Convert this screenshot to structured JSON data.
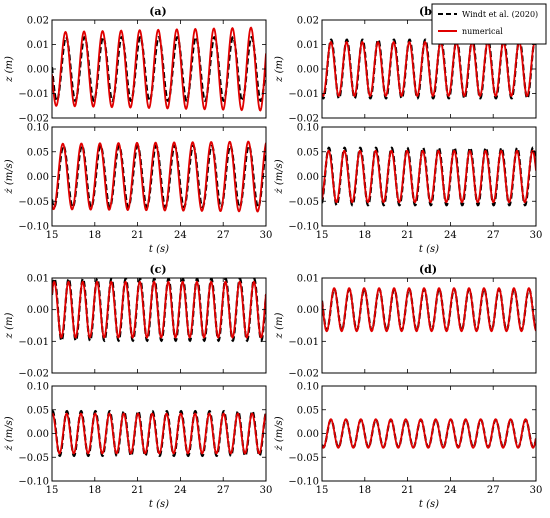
{
  "legend": {
    "ref_label": "Windt et al. (2020)",
    "num_label": "numerical",
    "ref_color": "#000000",
    "num_color": "#e00000"
  },
  "axis_text": {
    "xlabel": "t (s)",
    "ylabel_pos": "z (m)",
    "ylabel_vel": "ż (m/s)"
  },
  "panel_labels": [
    "(a)",
    "(b)",
    "(c)",
    "(d)"
  ],
  "chart_data": [
    {
      "type": "line",
      "panel": "(a)",
      "quantity": "position",
      "xlim": [
        15,
        30
      ],
      "ylim": [
        -0.02,
        0.02
      ],
      "x_ticks": [
        15,
        18,
        21,
        24,
        27,
        30
      ],
      "y_ticks": [
        -0.02,
        -0.01,
        0.0,
        0.01,
        0.02
      ],
      "y_tick_labels": [
        "−0.02",
        "−0.01",
        "0.00",
        "0.01",
        "0.02"
      ],
      "grid": false,
      "series": [
        {
          "name": "Windt et al. (2020)",
          "style": "dashed",
          "period_s": 1.3,
          "amplitude": 0.013,
          "phase": -0.3,
          "amp_drift": 0.0
        },
        {
          "name": "numerical",
          "style": "solid",
          "period_s": 1.3,
          "amplitude": 0.015,
          "phase": -0.1,
          "amp_drift": 0.002
        }
      ]
    },
    {
      "type": "line",
      "panel": "(a)",
      "quantity": "velocity",
      "xlim": [
        15,
        30
      ],
      "ylim": [
        -0.1,
        0.1
      ],
      "x_ticks": [
        15,
        18,
        21,
        24,
        27,
        30
      ],
      "y_ticks": [
        -0.1,
        -0.05,
        0.0,
        0.05,
        0.1
      ],
      "y_tick_labels": [
        "−0.10",
        "−0.05",
        "0.00",
        "0.05",
        "0.10"
      ],
      "grid": false,
      "series": [
        {
          "name": "Windt et al. (2020)",
          "style": "dashed",
          "period_s": 1.3,
          "amplitude": 0.062,
          "phase": 0.6,
          "amp_drift": 0.0
        },
        {
          "name": "numerical",
          "style": "solid",
          "period_s": 1.3,
          "amplitude": 0.066,
          "phase": 0.8,
          "amp_drift": 0.005
        }
      ]
    },
    {
      "type": "line",
      "panel": "(b)",
      "quantity": "position",
      "xlim": [
        15,
        30
      ],
      "ylim": [
        -0.02,
        0.02
      ],
      "x_ticks": [
        15,
        18,
        21,
        24,
        27,
        30
      ],
      "y_ticks": [
        -0.02,
        -0.01,
        0.0,
        0.01,
        0.02
      ],
      "y_tick_labels": [
        "−0.02",
        "−0.01",
        "0.00",
        "0.01",
        "0.02"
      ],
      "grid": false,
      "series": [
        {
          "name": "Windt et al. (2020)",
          "style": "dashed",
          "period_s": 1.1,
          "amplitude": 0.012,
          "phase": 0.2,
          "amp_drift": 0.0
        },
        {
          "name": "numerical",
          "style": "solid",
          "period_s": 1.1,
          "amplitude": 0.011,
          "phase": 0.3,
          "amp_drift": 0.0
        }
      ]
    },
    {
      "type": "line",
      "panel": "(b)",
      "quantity": "velocity",
      "xlim": [
        15,
        30
      ],
      "ylim": [
        -0.1,
        0.1
      ],
      "x_ticks": [
        15,
        18,
        21,
        24,
        27,
        30
      ],
      "y_ticks": [
        -0.1,
        -0.05,
        0.0,
        0.05,
        0.1
      ],
      "y_tick_labels": [
        "−0.10",
        "−0.05",
        "0.00",
        "0.05",
        "0.10"
      ],
      "grid": false,
      "series": [
        {
          "name": "Windt et al. (2020)",
          "style": "dashed",
          "period_s": 1.1,
          "amplitude": 0.058,
          "phase": 1.1,
          "amp_drift": 0.0
        },
        {
          "name": "numerical",
          "style": "solid",
          "period_s": 1.1,
          "amplitude": 0.052,
          "phase": 1.2,
          "amp_drift": 0.0
        }
      ]
    },
    {
      "type": "line",
      "panel": "(c)",
      "quantity": "position",
      "xlim": [
        15,
        30
      ],
      "ylim": [
        -0.02,
        0.01
      ],
      "x_ticks": [
        15,
        18,
        21,
        24,
        27,
        30
      ],
      "y_ticks": [
        -0.02,
        -0.01,
        0.0,
        0.01
      ],
      "y_tick_labels": [
        "−0.02",
        "−0.01",
        "0.00",
        "0.01"
      ],
      "grid": false,
      "series": [
        {
          "name": "Windt et al. (2020)",
          "style": "dashed",
          "period_s": 1.0,
          "amplitude": 0.0098,
          "phase": 0.5,
          "amp_drift": 0.0
        },
        {
          "name": "numerical",
          "style": "solid",
          "period_s": 1.0,
          "amplitude": 0.0088,
          "phase": 0.6,
          "amp_drift": 0.0
        }
      ]
    },
    {
      "type": "line",
      "panel": "(c)",
      "quantity": "velocity",
      "xlim": [
        15,
        30
      ],
      "ylim": [
        -0.1,
        0.1
      ],
      "x_ticks": [
        15,
        18,
        21,
        24,
        27,
        30
      ],
      "y_ticks": [
        -0.1,
        -0.05,
        0.0,
        0.05,
        0.1
      ],
      "y_tick_labels": [
        "−0.10",
        "−0.05",
        "0.00",
        "0.05",
        "0.10"
      ],
      "grid": false,
      "series": [
        {
          "name": "Windt et al. (2020)",
          "style": "dashed",
          "period_s": 1.0,
          "amplitude": 0.047,
          "phase": 1.3,
          "amp_drift": 0.0
        },
        {
          "name": "numerical",
          "style": "solid",
          "period_s": 1.0,
          "amplitude": 0.042,
          "phase": 1.4,
          "amp_drift": 0.0
        }
      ]
    },
    {
      "type": "line",
      "panel": "(d)",
      "quantity": "position",
      "xlim": [
        15,
        30
      ],
      "ylim": [
        -0.02,
        0.01
      ],
      "x_ticks": [
        15,
        18,
        21,
        24,
        27,
        30
      ],
      "y_ticks": [
        -0.02,
        -0.01,
        0.0,
        0.01
      ],
      "y_tick_labels": [
        "−0.02",
        "−0.01",
        "0.00",
        "0.01"
      ],
      "grid": false,
      "series": [
        {
          "name": "Windt et al. (2020)",
          "style": "dashed",
          "period_s": 1.05,
          "amplitude": 0.0065,
          "phase": 0.9,
          "amp_drift": 0.0
        },
        {
          "name": "numerical",
          "style": "solid",
          "period_s": 1.05,
          "amplitude": 0.0068,
          "phase": 0.95,
          "amp_drift": 0.0
        }
      ]
    },
    {
      "type": "line",
      "panel": "(d)",
      "quantity": "velocity",
      "xlim": [
        15,
        30
      ],
      "ylim": [
        -0.1,
        0.1
      ],
      "x_ticks": [
        15,
        18,
        21,
        24,
        27,
        30
      ],
      "y_ticks": [
        -0.1,
        -0.05,
        0.0,
        0.05,
        0.1
      ],
      "y_tick_labels": [
        "−0.10",
        "−0.05",
        "0.00",
        "0.05",
        "0.10"
      ],
      "grid": false,
      "series": [
        {
          "name": "Windt et al. (2020)",
          "style": "dashed",
          "period_s": 1.05,
          "amplitude": 0.029,
          "phase": 2.3,
          "amp_drift": 0.0
        },
        {
          "name": "numerical",
          "style": "solid",
          "period_s": 1.05,
          "amplitude": 0.03,
          "phase": 2.35,
          "amp_drift": 0.0
        }
      ]
    }
  ]
}
